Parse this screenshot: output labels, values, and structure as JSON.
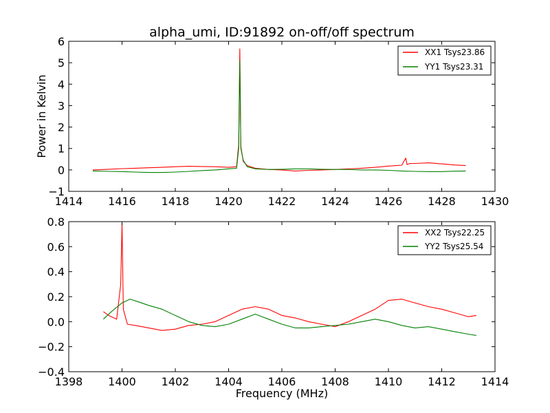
{
  "chart_data": [
    {
      "type": "line",
      "title": "alpha_umi, ID:91892 on-off/off spectrum",
      "xlabel": "",
      "ylabel": "Power in Kelvin",
      "xlim": [
        1414,
        1430
      ],
      "ylim": [
        -1,
        6
      ],
      "xticks": [
        1414,
        1416,
        1418,
        1420,
        1422,
        1424,
        1426,
        1428,
        1430
      ],
      "yticks": [
        -1,
        0,
        1,
        2,
        3,
        4,
        5,
        6
      ],
      "xtick_labels": [
        "1414",
        "1416",
        "1418",
        "1420",
        "1422",
        "1424",
        "1426",
        "1428",
        "1430"
      ],
      "ytick_labels": [
        "−1",
        "0",
        "1",
        "2",
        "3",
        "4",
        "5",
        "6"
      ],
      "grid": false,
      "legend_position": "top-right",
      "series": [
        {
          "name": "XX1 Tsys23.86",
          "color": "#ff0000",
          "x": [
            1414.9,
            1415.5,
            1416.0,
            1416.5,
            1417.0,
            1417.5,
            1418.0,
            1418.5,
            1419.0,
            1419.5,
            1420.0,
            1420.3,
            1420.38,
            1420.42,
            1420.46,
            1420.55,
            1420.7,
            1421.0,
            1421.5,
            1422.0,
            1422.5,
            1423.0,
            1423.5,
            1424.0,
            1424.5,
            1425.0,
            1425.5,
            1426.0,
            1426.5,
            1426.65,
            1426.7,
            1426.8,
            1427.0,
            1427.5,
            1428.0,
            1428.5,
            1428.9
          ],
          "y": [
            0.0,
            0.03,
            0.06,
            0.08,
            0.1,
            0.12,
            0.15,
            0.17,
            0.16,
            0.15,
            0.12,
            0.15,
            1.2,
            5.65,
            1.1,
            0.4,
            0.2,
            0.08,
            0.02,
            0.0,
            -0.05,
            -0.02,
            0.0,
            0.02,
            0.05,
            0.08,
            0.12,
            0.18,
            0.22,
            0.55,
            0.25,
            0.3,
            0.3,
            0.33,
            0.28,
            0.23,
            0.2
          ]
        },
        {
          "name": "YY1 Tsys23.31",
          "color": "#008000",
          "x": [
            1414.9,
            1415.5,
            1416.0,
            1416.5,
            1417.0,
            1417.5,
            1418.0,
            1418.5,
            1419.0,
            1419.5,
            1420.0,
            1420.3,
            1420.38,
            1420.42,
            1420.46,
            1420.55,
            1420.7,
            1421.0,
            1421.5,
            1422.0,
            1422.5,
            1423.0,
            1423.5,
            1424.0,
            1424.5,
            1425.0,
            1425.5,
            1426.0,
            1426.5,
            1427.0,
            1427.5,
            1428.0,
            1428.5,
            1428.9
          ],
          "y": [
            -0.05,
            -0.07,
            -0.08,
            -0.1,
            -0.12,
            -0.12,
            -0.1,
            -0.07,
            -0.03,
            0.0,
            0.05,
            0.08,
            1.0,
            5.1,
            1.0,
            0.45,
            0.15,
            0.05,
            0.02,
            0.03,
            0.05,
            0.05,
            0.03,
            0.02,
            0.02,
            0.0,
            0.0,
            -0.02,
            -0.05,
            -0.07,
            -0.08,
            -0.08,
            -0.06,
            -0.05
          ]
        }
      ]
    },
    {
      "type": "line",
      "title": "",
      "xlabel": "Frequency (MHz)",
      "ylabel": "",
      "xlim": [
        1398,
        1414
      ],
      "ylim": [
        -0.4,
        0.8
      ],
      "xticks": [
        1398,
        1400,
        1402,
        1404,
        1406,
        1408,
        1410,
        1412,
        1414
      ],
      "yticks": [
        -0.4,
        -0.2,
        0.0,
        0.2,
        0.4,
        0.6,
        0.8
      ],
      "xtick_labels": [
        "1398",
        "1400",
        "1402",
        "1404",
        "1406",
        "1408",
        "1410",
        "1412",
        "1414"
      ],
      "ytick_labels": [
        "−0.4",
        "−0.2",
        "0.0",
        "0.2",
        "0.4",
        "0.6",
        "0.8"
      ],
      "grid": false,
      "legend_position": "top-right",
      "series": [
        {
          "name": "XX2 Tsys22.25",
          "color": "#ff0000",
          "x": [
            1399.3,
            1399.5,
            1399.8,
            1399.95,
            1400.0,
            1400.05,
            1400.2,
            1400.5,
            1401.0,
            1401.5,
            1402.0,
            1402.5,
            1403.0,
            1403.5,
            1404.0,
            1404.5,
            1405.0,
            1405.5,
            1406.0,
            1406.5,
            1407.0,
            1407.5,
            1408.0,
            1408.5,
            1409.0,
            1409.5,
            1410.0,
            1410.5,
            1411.0,
            1411.5,
            1412.0,
            1412.5,
            1413.0,
            1413.3
          ],
          "y": [
            0.08,
            0.05,
            0.02,
            0.3,
            0.78,
            0.1,
            -0.02,
            -0.03,
            -0.05,
            -0.07,
            -0.06,
            -0.03,
            -0.02,
            0.0,
            0.05,
            0.1,
            0.12,
            0.1,
            0.05,
            0.03,
            0.0,
            -0.02,
            -0.04,
            0.0,
            0.05,
            0.1,
            0.17,
            0.18,
            0.15,
            0.12,
            0.1,
            0.07,
            0.04,
            0.05
          ]
        },
        {
          "name": "YY2 Tsys25.54",
          "color": "#008000",
          "x": [
            1399.3,
            1399.6,
            1400.0,
            1400.3,
            1400.6,
            1401.0,
            1401.5,
            1402.0,
            1402.5,
            1403.0,
            1403.5,
            1404.0,
            1404.5,
            1405.0,
            1405.5,
            1406.0,
            1406.5,
            1407.0,
            1407.5,
            1408.0,
            1408.5,
            1409.0,
            1409.5,
            1410.0,
            1410.5,
            1411.0,
            1411.5,
            1412.0,
            1412.5,
            1413.0,
            1413.3
          ],
          "y": [
            0.02,
            0.08,
            0.15,
            0.18,
            0.16,
            0.13,
            0.1,
            0.05,
            0.0,
            -0.03,
            -0.04,
            -0.02,
            0.02,
            0.06,
            0.02,
            -0.02,
            -0.05,
            -0.05,
            -0.04,
            -0.03,
            -0.02,
            0.0,
            0.02,
            0.0,
            -0.03,
            -0.05,
            -0.04,
            -0.06,
            -0.08,
            -0.1,
            -0.11
          ]
        }
      ]
    }
  ]
}
